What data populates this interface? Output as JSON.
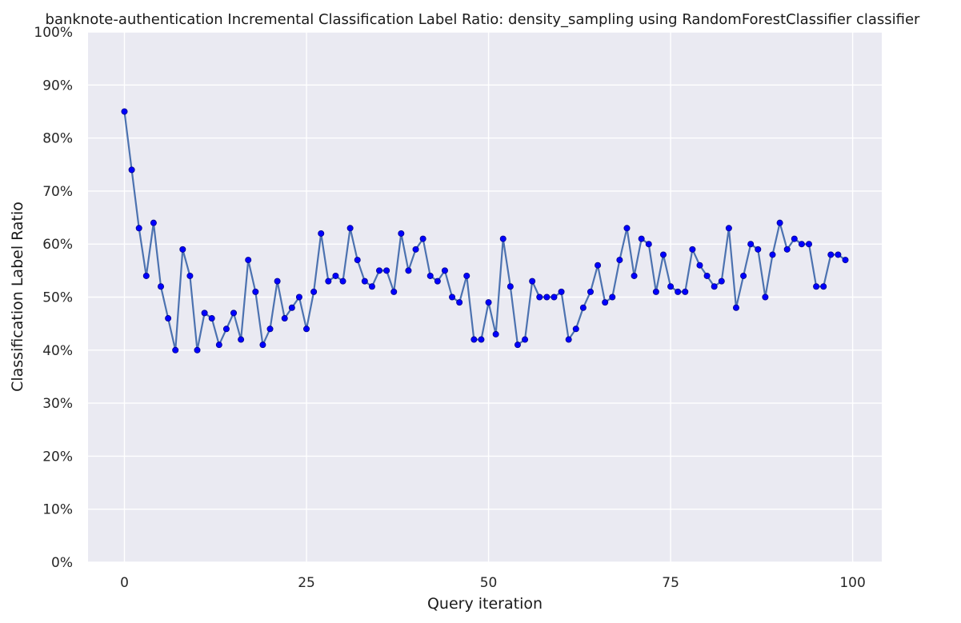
{
  "chart_data": {
    "type": "line",
    "title": "banknote-authentication Incremental Classification Label Ratio: density_sampling using RandomForestClassifier classifier",
    "xlabel": "Query iteration",
    "ylabel": "Classification Label Ratio",
    "xlim": [
      -5,
      104
    ],
    "ylim": [
      0,
      1
    ],
    "xticks": [
      0,
      25,
      50,
      75,
      100
    ],
    "xtick_labels": [
      "0",
      "25",
      "50",
      "75",
      "100"
    ],
    "yticks": [
      0,
      0.1,
      0.2,
      0.3,
      0.4,
      0.5,
      0.6,
      0.7,
      0.8,
      0.9,
      1.0
    ],
    "ytick_labels": [
      "0%",
      "10%",
      "20%",
      "30%",
      "40%",
      "50%",
      "60%",
      "70%",
      "80%",
      "90%",
      "100%"
    ],
    "grid": true,
    "colors": {
      "background": "#eaeaf2",
      "grid": "#ffffff",
      "line": "#4c72b0",
      "marker": "#0000ff",
      "marker_edge": "#00008b"
    },
    "series": [
      {
        "x": [
          0,
          1,
          2,
          3,
          4,
          5,
          6,
          7,
          8,
          9,
          10,
          11,
          12,
          13,
          14,
          15,
          16,
          17,
          18,
          19,
          20,
          21,
          22,
          23,
          24,
          25,
          26,
          27,
          28,
          29,
          30,
          31,
          32,
          33,
          34,
          35,
          36,
          37,
          38,
          39,
          40,
          41,
          42,
          43,
          44,
          45,
          46,
          47,
          48,
          49,
          50,
          51,
          52,
          53,
          54,
          55,
          56,
          57,
          58,
          59,
          60,
          61,
          62,
          63,
          64,
          65,
          66,
          67,
          68,
          69,
          70,
          71,
          72,
          73,
          74,
          75,
          76,
          77,
          78,
          79,
          80,
          81,
          82,
          83,
          84,
          85,
          86,
          87,
          88,
          89,
          90,
          91,
          92,
          93,
          94,
          95,
          96,
          97,
          98,
          99
        ],
        "values": [
          0.85,
          0.74,
          0.63,
          0.54,
          0.64,
          0.52,
          0.46,
          0.4,
          0.59,
          0.54,
          0.4,
          0.47,
          0.46,
          0.41,
          0.44,
          0.47,
          0.42,
          0.57,
          0.51,
          0.41,
          0.44,
          0.53,
          0.46,
          0.48,
          0.5,
          0.44,
          0.51,
          0.62,
          0.53,
          0.54,
          0.53,
          0.63,
          0.57,
          0.53,
          0.52,
          0.55,
          0.55,
          0.51,
          0.62,
          0.55,
          0.59,
          0.61,
          0.54,
          0.53,
          0.55,
          0.5,
          0.49,
          0.54,
          0.42,
          0.42,
          0.49,
          0.43,
          0.61,
          0.52,
          0.41,
          0.42,
          0.53,
          0.5,
          0.5,
          0.5,
          0.51,
          0.42,
          0.44,
          0.48,
          0.51,
          0.56,
          0.49,
          0.5,
          0.57,
          0.63,
          0.54,
          0.61,
          0.6,
          0.51,
          0.58,
          0.52,
          0.51,
          0.51,
          0.59,
          0.56,
          0.54,
          0.52,
          0.53,
          0.63,
          0.48,
          0.54,
          0.6,
          0.59,
          0.5,
          0.58,
          0.64,
          0.59,
          0.61,
          0.6,
          0.6,
          0.52,
          0.52,
          0.58,
          0.58,
          0.57
        ]
      }
    ]
  }
}
